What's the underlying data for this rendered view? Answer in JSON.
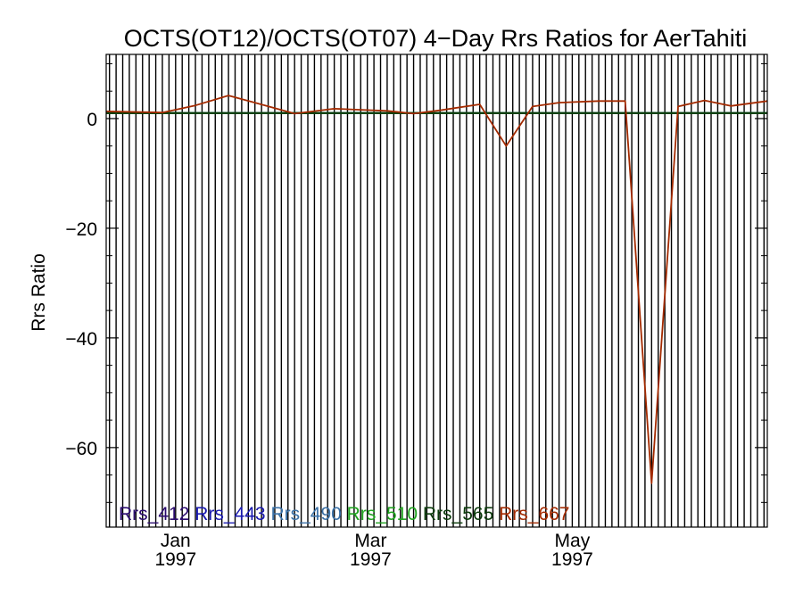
{
  "chart_data": {
    "type": "line",
    "title": "OCTS(OT12)/OCTS(OT07) 4−Day Rrs Ratios for AerTahiti",
    "xlabel": "",
    "ylabel": "Rrs Ratio",
    "xlim": [
      "1996-12-11",
      "1997-06-29"
    ],
    "ylim": [
      -74.5,
      11.7
    ],
    "y_ticks": [
      0,
      -20,
      -40,
      -60
    ],
    "y_tick_labels": [
      "0",
      "−20",
      "−40",
      "−60"
    ],
    "x_ticks": [
      {
        "date": "1997-01-01",
        "month": "Jan",
        "year": "1997"
      },
      {
        "date": "1997-03-01",
        "month": "Mar",
        "year": "1997"
      },
      {
        "date": "1997-05-01",
        "month": "May",
        "year": "1997"
      }
    ],
    "grid": "vertical lines every 2 days",
    "legend_position": "bottom-left",
    "series": [
      {
        "name": "Rrs_412",
        "color": "#2a0a6e",
        "x": [
          "1996-12-11",
          "1997-06-29"
        ],
        "values": [
          1,
          1
        ]
      },
      {
        "name": "Rrs_443",
        "color": "#1a1ab0",
        "x": [
          "1996-12-11",
          "1997-06-29"
        ],
        "values": [
          1,
          1
        ]
      },
      {
        "name": "Rrs_490",
        "color": "#3c72a8",
        "x": [
          "1996-12-11",
          "1997-06-29"
        ],
        "values": [
          1,
          1
        ]
      },
      {
        "name": "Rrs_510",
        "color": "#1fa31f",
        "x": [
          "1996-12-11",
          "1997-06-29"
        ],
        "values": [
          1,
          1
        ]
      },
      {
        "name": "Rrs_565",
        "color": "#0a3a0a",
        "x": [
          "1996-12-11",
          "1997-06-29"
        ],
        "values": [
          1,
          1
        ]
      },
      {
        "name": "Rrs_667",
        "color": "#a32a00",
        "x": [
          "1996-12-11",
          "1996-12-28",
          "1997-01-07",
          "1997-01-17",
          "1997-01-25",
          "1997-02-06",
          "1997-02-18",
          "1997-02-26",
          "1997-03-06",
          "1997-03-14",
          "1997-03-22",
          "1997-04-03",
          "1997-04-11",
          "1997-04-19",
          "1997-04-27",
          "1997-05-09",
          "1997-05-17",
          "1997-05-25",
          "1997-06-02",
          "1997-06-10",
          "1997-06-18",
          "1997-06-29"
        ],
        "values": [
          1.3,
          1.1,
          2.4,
          4.2,
          2.9,
          0.9,
          1.8,
          1.6,
          1.4,
          0.9,
          1.5,
          2.6,
          -5.0,
          2.2,
          2.9,
          3.2,
          3.2,
          -66.5,
          2.2,
          3.3,
          2.3,
          3.2
        ]
      }
    ]
  }
}
